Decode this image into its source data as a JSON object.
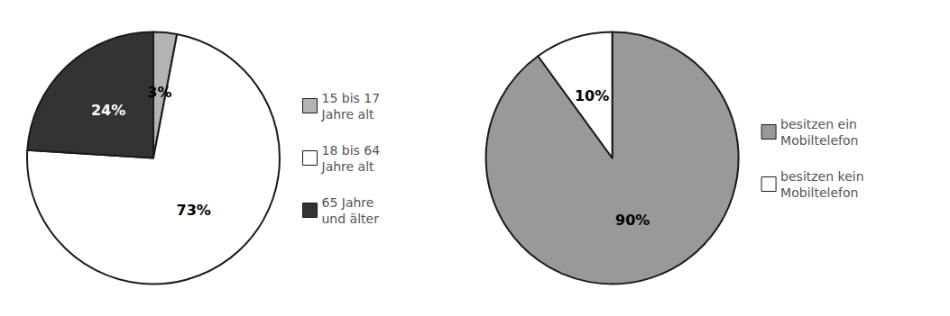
{
  "chart_data": [
    {
      "type": "pie",
      "categories": [
        "15 bis 17\nJahre alt",
        "18 bis 64\nJahre alt",
        "65 Jahre\nund älter"
      ],
      "values": [
        3,
        73,
        24
      ],
      "value_labels": [
        "3%",
        "73%",
        "24%"
      ],
      "colors": [
        "#b3b3b3",
        "#ffffff",
        "#333333"
      ],
      "data_labels": true,
      "legend": "right"
    },
    {
      "type": "pie",
      "categories": [
        "besitzen ein\nMobiltelefon",
        "besitzen kein\nMobiltelefon"
      ],
      "values": [
        90,
        10
      ],
      "value_labels": [
        "90%",
        "10%"
      ],
      "colors": [
        "#999999",
        "#ffffff"
      ],
      "data_labels": true,
      "legend": "right"
    }
  ]
}
